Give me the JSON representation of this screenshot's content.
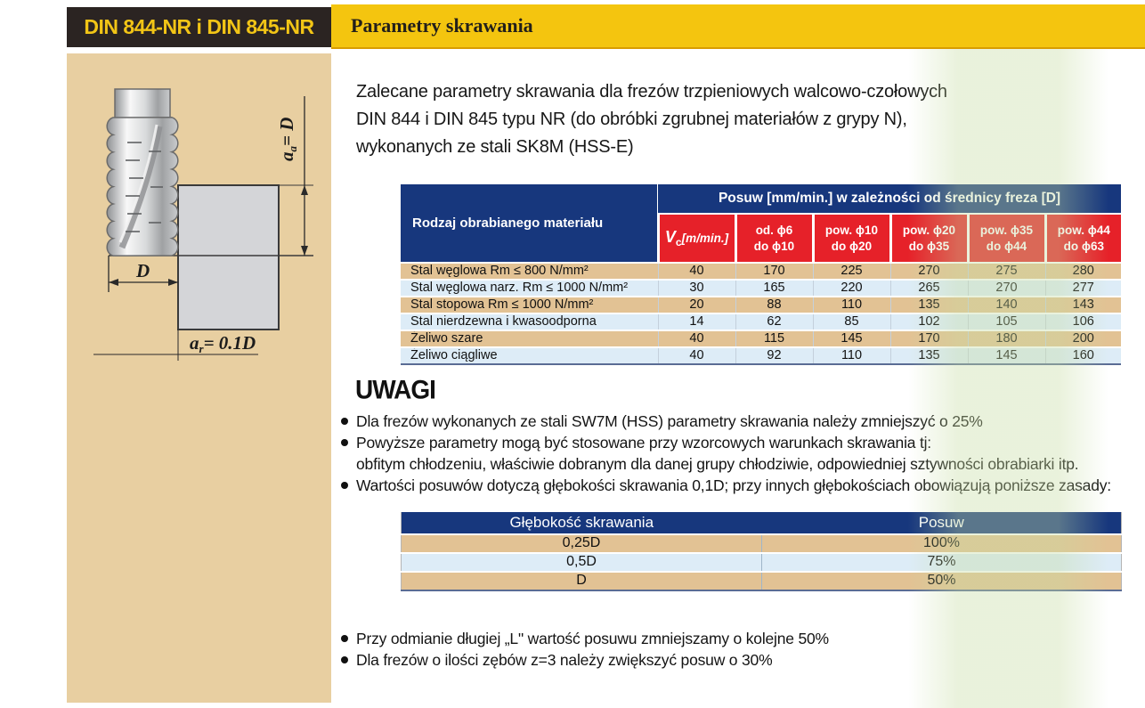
{
  "header": {
    "din_label": "DIN 844-NR i DIN 845-NR",
    "section_title": "Parametry skrawania"
  },
  "diagram": {
    "axial_base": "a",
    "axial_sub": "a",
    "axial_eq": "= D",
    "diameter_label": "D",
    "radial_base": "a",
    "radial_sub": "r",
    "radial_eq": "= 0.1D"
  },
  "intro": "Zalecane parametry skrawania dla frezów trzpieniowych walcowo-czołowych\nDIN 844 i DIN 845 typu NR (do obróbki zgrubnej materiałów z grypy N),\nwykonanych ze stali SK8M (HSS-E)",
  "table1": {
    "material_header": "Rodzaj obrabianego materiału",
    "posuw_header": "Posuw [mm/min.] w zależności od średnicy freza [D]",
    "vc": {
      "base": "V",
      "sub": "c",
      "unit": "[m/min.]"
    },
    "feed_cols": [
      "od. ϕ6\ndo ϕ10",
      "pow. ϕ10\ndo ϕ20",
      "pow. ϕ20\ndo ϕ35",
      "pow. ϕ35\ndo ϕ44",
      "pow. ϕ44\ndo ϕ63"
    ],
    "rows": [
      {
        "material": "Stal węglowa Rm ≤ 800 N/mm²",
        "values": [
          "40",
          "170",
          "225",
          "270",
          "275",
          "280"
        ]
      },
      {
        "material": "Stal węglowa narz. Rm ≤ 1000 N/mm²",
        "values": [
          "30",
          "165",
          "220",
          "265",
          "270",
          "277"
        ]
      },
      {
        "material": "Stal stopowa Rm ≤ 1000 N/mm²",
        "values": [
          "20",
          "88",
          "110",
          "135",
          "140",
          "143"
        ]
      },
      {
        "material": "Stal nierdzewna i kwasoodporna",
        "values": [
          "14",
          "62",
          "85",
          "102",
          "105",
          "106"
        ]
      },
      {
        "material": "Żeliwo szare",
        "values": [
          "40",
          "115",
          "145",
          "170",
          "180",
          "200"
        ]
      },
      {
        "material": "Żeliwo ciągliwe",
        "values": [
          "40",
          "92",
          "110",
          "135",
          "145",
          "160"
        ]
      }
    ]
  },
  "notes": {
    "title": "UWAGI",
    "items": [
      "Dla frezów wykonanych ze stali SW7M (HSS) parametry skrawania należy zmniejszyć o 25%",
      "Powyższe parametry mogą być stosowane przy wzorcowych warunkach skrawania tj:\nobfitym chłodzeniu, właściwie dobranym dla danej grupy chłodziwie, odpowiedniej sztywności obrabiarki itp.",
      "Wartości posuwów dotyczą głębokości skrawania 0,1D; przy innych głębokościach obowiązują poniższe zasady:"
    ]
  },
  "table2": {
    "headers": [
      "Głębokość skrawania",
      "Posuw"
    ],
    "rows": [
      [
        "0,25D",
        "100%"
      ],
      [
        "0,5D",
        "75%"
      ],
      [
        "D",
        "50%"
      ]
    ]
  },
  "bottom_notes": [
    "Przy odmianie długiej „L\" wartość posuwu zmniejszamy o kolejne 50%",
    "Dla frezów o ilości zębów z=3 należy zwiększyć posuw o 30%"
  ],
  "colors": {
    "brand_yellow": "#f4c50f",
    "header_black": "#2b2422",
    "table_navy": "#17377d",
    "table_red": "#e62129",
    "row_tan": "#e2c294",
    "row_blue": "#ddecf7",
    "sidebar_tan": "#e8cfa1"
  }
}
